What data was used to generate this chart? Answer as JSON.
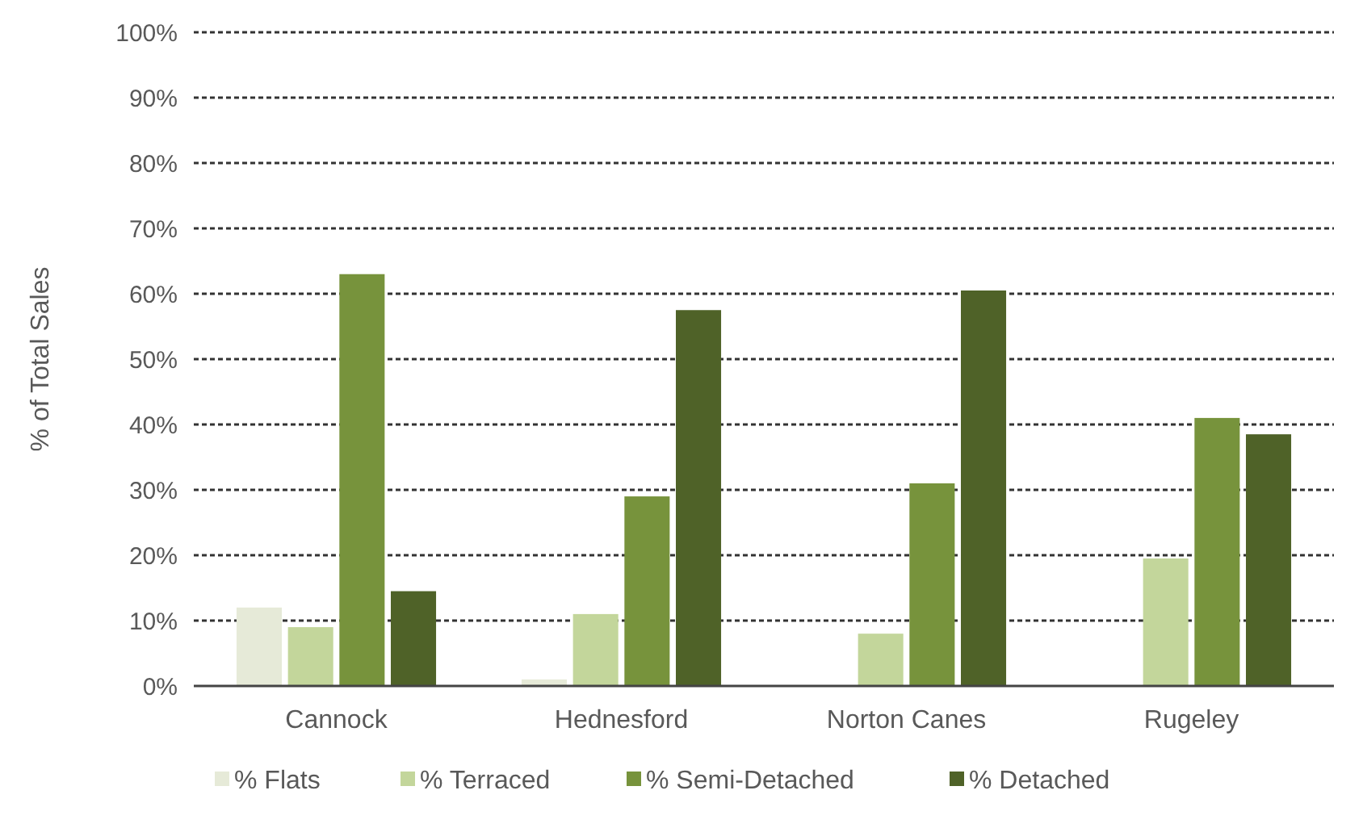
{
  "chart_data": {
    "type": "bar",
    "ylabel": "% of Total Sales",
    "categories": [
      "Cannock",
      "Hednesford",
      "Norton Canes",
      "Rugeley"
    ],
    "series": [
      {
        "name": "% Flats",
        "color": "#e6ead8",
        "values": [
          12,
          1,
          0,
          0
        ]
      },
      {
        "name": "% Terraced",
        "color": "#c3d69b",
        "values": [
          9,
          11,
          8,
          19.5
        ]
      },
      {
        "name": "% Semi-Detached",
        "color": "#77933c",
        "values": [
          63,
          29,
          31,
          41
        ]
      },
      {
        "name": "% Detached",
        "color": "#4f6228",
        "values": [
          14.5,
          57.5,
          60.5,
          38.5
        ]
      }
    ],
    "ylim": [
      0,
      100
    ],
    "yticks": [
      {
        "value": 0,
        "label": "0%"
      },
      {
        "value": 10,
        "label": "10%"
      },
      {
        "value": 20,
        "label": "20%"
      },
      {
        "value": 30,
        "label": "30%"
      },
      {
        "value": 40,
        "label": "40%"
      },
      {
        "value": 50,
        "label": "50%"
      },
      {
        "value": 60,
        "label": "60%"
      },
      {
        "value": 70,
        "label": "70%"
      },
      {
        "value": 80,
        "label": "80%"
      },
      {
        "value": 90,
        "label": "90%"
      },
      {
        "value": 100,
        "label": "100%"
      }
    ],
    "grid": "y",
    "legend": "bottom"
  }
}
